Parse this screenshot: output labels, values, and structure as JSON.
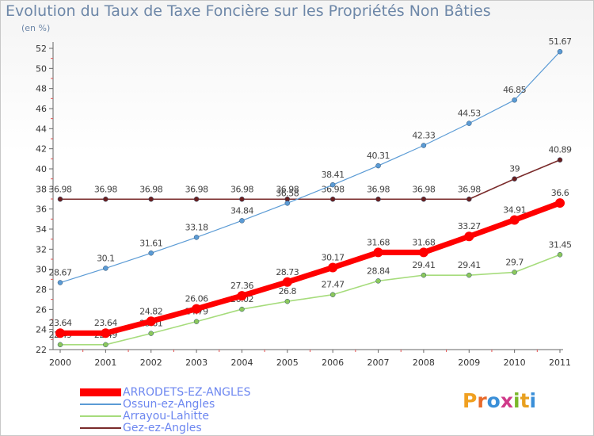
{
  "title": "Evolution du Taux de Taxe Foncière sur les Propriétés Non Bâties",
  "unit_label": "(en %)",
  "logo_text": "Proxiti",
  "chart_data": {
    "type": "line",
    "title": "Evolution du Taux de Taxe Foncière sur les Propriétés Non Bâties",
    "ylabel": "(en %)",
    "xlabel": "",
    "x": [
      "2000",
      "2001",
      "2002",
      "2003",
      "2004",
      "2005",
      "2006",
      "2007",
      "2008",
      "2009",
      "2010",
      "2011"
    ],
    "ylim": [
      22,
      52
    ],
    "yticks": [
      22,
      24,
      26,
      28,
      30,
      32,
      34,
      36,
      38,
      40,
      42,
      44,
      46,
      48,
      50,
      52
    ],
    "grid": false,
    "legend_position": "bottom-left",
    "series": [
      {
        "name": "ARRODETS-EZ-ANGLES",
        "color": "#ff0000",
        "values": [
          23.64,
          23.64,
          24.82,
          26.06,
          27.36,
          28.73,
          30.17,
          31.68,
          31.68,
          33.27,
          34.91,
          36.6
        ],
        "labels": [
          "23.64",
          "23.64",
          "24.82",
          "26.06",
          "27.36",
          "28.73",
          "30.17",
          "31.68",
          "31.68",
          "33.27",
          "34.91",
          "36.6"
        ]
      },
      {
        "name": "Ossun-ez-Angles",
        "color": "#5b9bd5",
        "values": [
          28.67,
          30.1,
          31.61,
          33.18,
          34.84,
          36.58,
          38.41,
          40.31,
          42.33,
          44.53,
          46.85,
          51.67
        ],
        "labels": [
          "28.67",
          "30.1",
          "31.61",
          "33.18",
          "34.84",
          "36.58",
          "38.41",
          "40.31",
          "42.33",
          "44.53",
          "46.85",
          "51.67"
        ]
      },
      {
        "name": "Arrayou-Lahitte",
        "color": "#9ad36a",
        "values": [
          22.49,
          22.49,
          23.61,
          24.79,
          26.02,
          26.8,
          27.47,
          28.84,
          29.41,
          29.41,
          29.7,
          31.45
        ],
        "labels": [
          "22.49",
          "22.49",
          "23.61",
          "24.79",
          "26.02",
          "26.8",
          "27.47",
          "28.84",
          "29.41",
          "29.41",
          "29.7",
          "31.45"
        ]
      },
      {
        "name": "Gez-ez-Angles",
        "color": "#7a2b2b",
        "values": [
          36.98,
          36.98,
          36.98,
          36.98,
          36.98,
          36.98,
          36.98,
          36.98,
          36.98,
          36.98,
          39,
          40.89
        ],
        "labels": [
          "36.98",
          "36.98",
          "36.98",
          "36.98",
          "36.98",
          "36.98",
          "36.98",
          "36.98",
          "36.98",
          "36.98",
          "39",
          "40.89"
        ]
      }
    ]
  }
}
